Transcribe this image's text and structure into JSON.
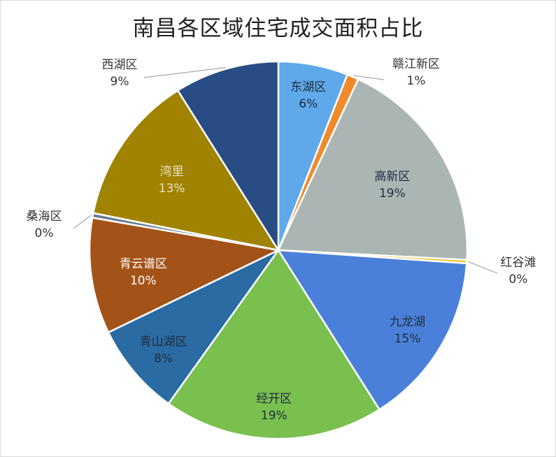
{
  "chart_data": {
    "type": "pie",
    "title": "南昌各区域住宅成交面积占比",
    "slices": [
      {
        "label": "东湖区",
        "value": 6,
        "pct_text": "6%",
        "color": "#5fa9ea",
        "text_color": "#1f2d3d",
        "outside": false
      },
      {
        "label": "赣江新区",
        "value": 1,
        "pct_text": "1%",
        "color": "#f08a2c",
        "text_color": "#333333",
        "outside": true
      },
      {
        "label": "高新区",
        "value": 19,
        "pct_text": "19%",
        "color": "#abb5b3",
        "text_color": "#1f2d3d",
        "outside": false
      },
      {
        "label": "红谷滩",
        "value": 0.3,
        "pct_text": "0%",
        "color": "#f2c12e",
        "text_color": "#333333",
        "outside": true
      },
      {
        "label": "九龙湖",
        "value": 15,
        "pct_text": "15%",
        "color": "#4a80d9",
        "text_color": "#1f2d3d",
        "outside": false
      },
      {
        "label": "经开区",
        "value": 19,
        "pct_text": "19%",
        "color": "#79c04f",
        "text_color": "#1f2d3d",
        "outside": false
      },
      {
        "label": "青山湖区",
        "value": 8,
        "pct_text": "8%",
        "color": "#2b6ba4",
        "text_color": "#1f2d3d",
        "outside": false
      },
      {
        "label": "青云谱区",
        "value": 10,
        "pct_text": "10%",
        "color": "#a45318",
        "text_color": "#ffffff",
        "outside": false
      },
      {
        "label": "桑海区",
        "value": 0.4,
        "pct_text": "0%",
        "color": "#6b7f8f",
        "text_color": "#333333",
        "outside": true
      },
      {
        "label": "湾里",
        "value": 13,
        "pct_text": "13%",
        "color": "#a08300",
        "text_color": "#e9e2c5",
        "outside": false
      },
      {
        "label": "西湖区",
        "value": 9,
        "pct_text": "9%",
        "color": "#284c84",
        "text_color": "#333333",
        "outside": true
      }
    ],
    "start_angle_deg": 0,
    "direction": "clockwise",
    "legend": "none"
  }
}
